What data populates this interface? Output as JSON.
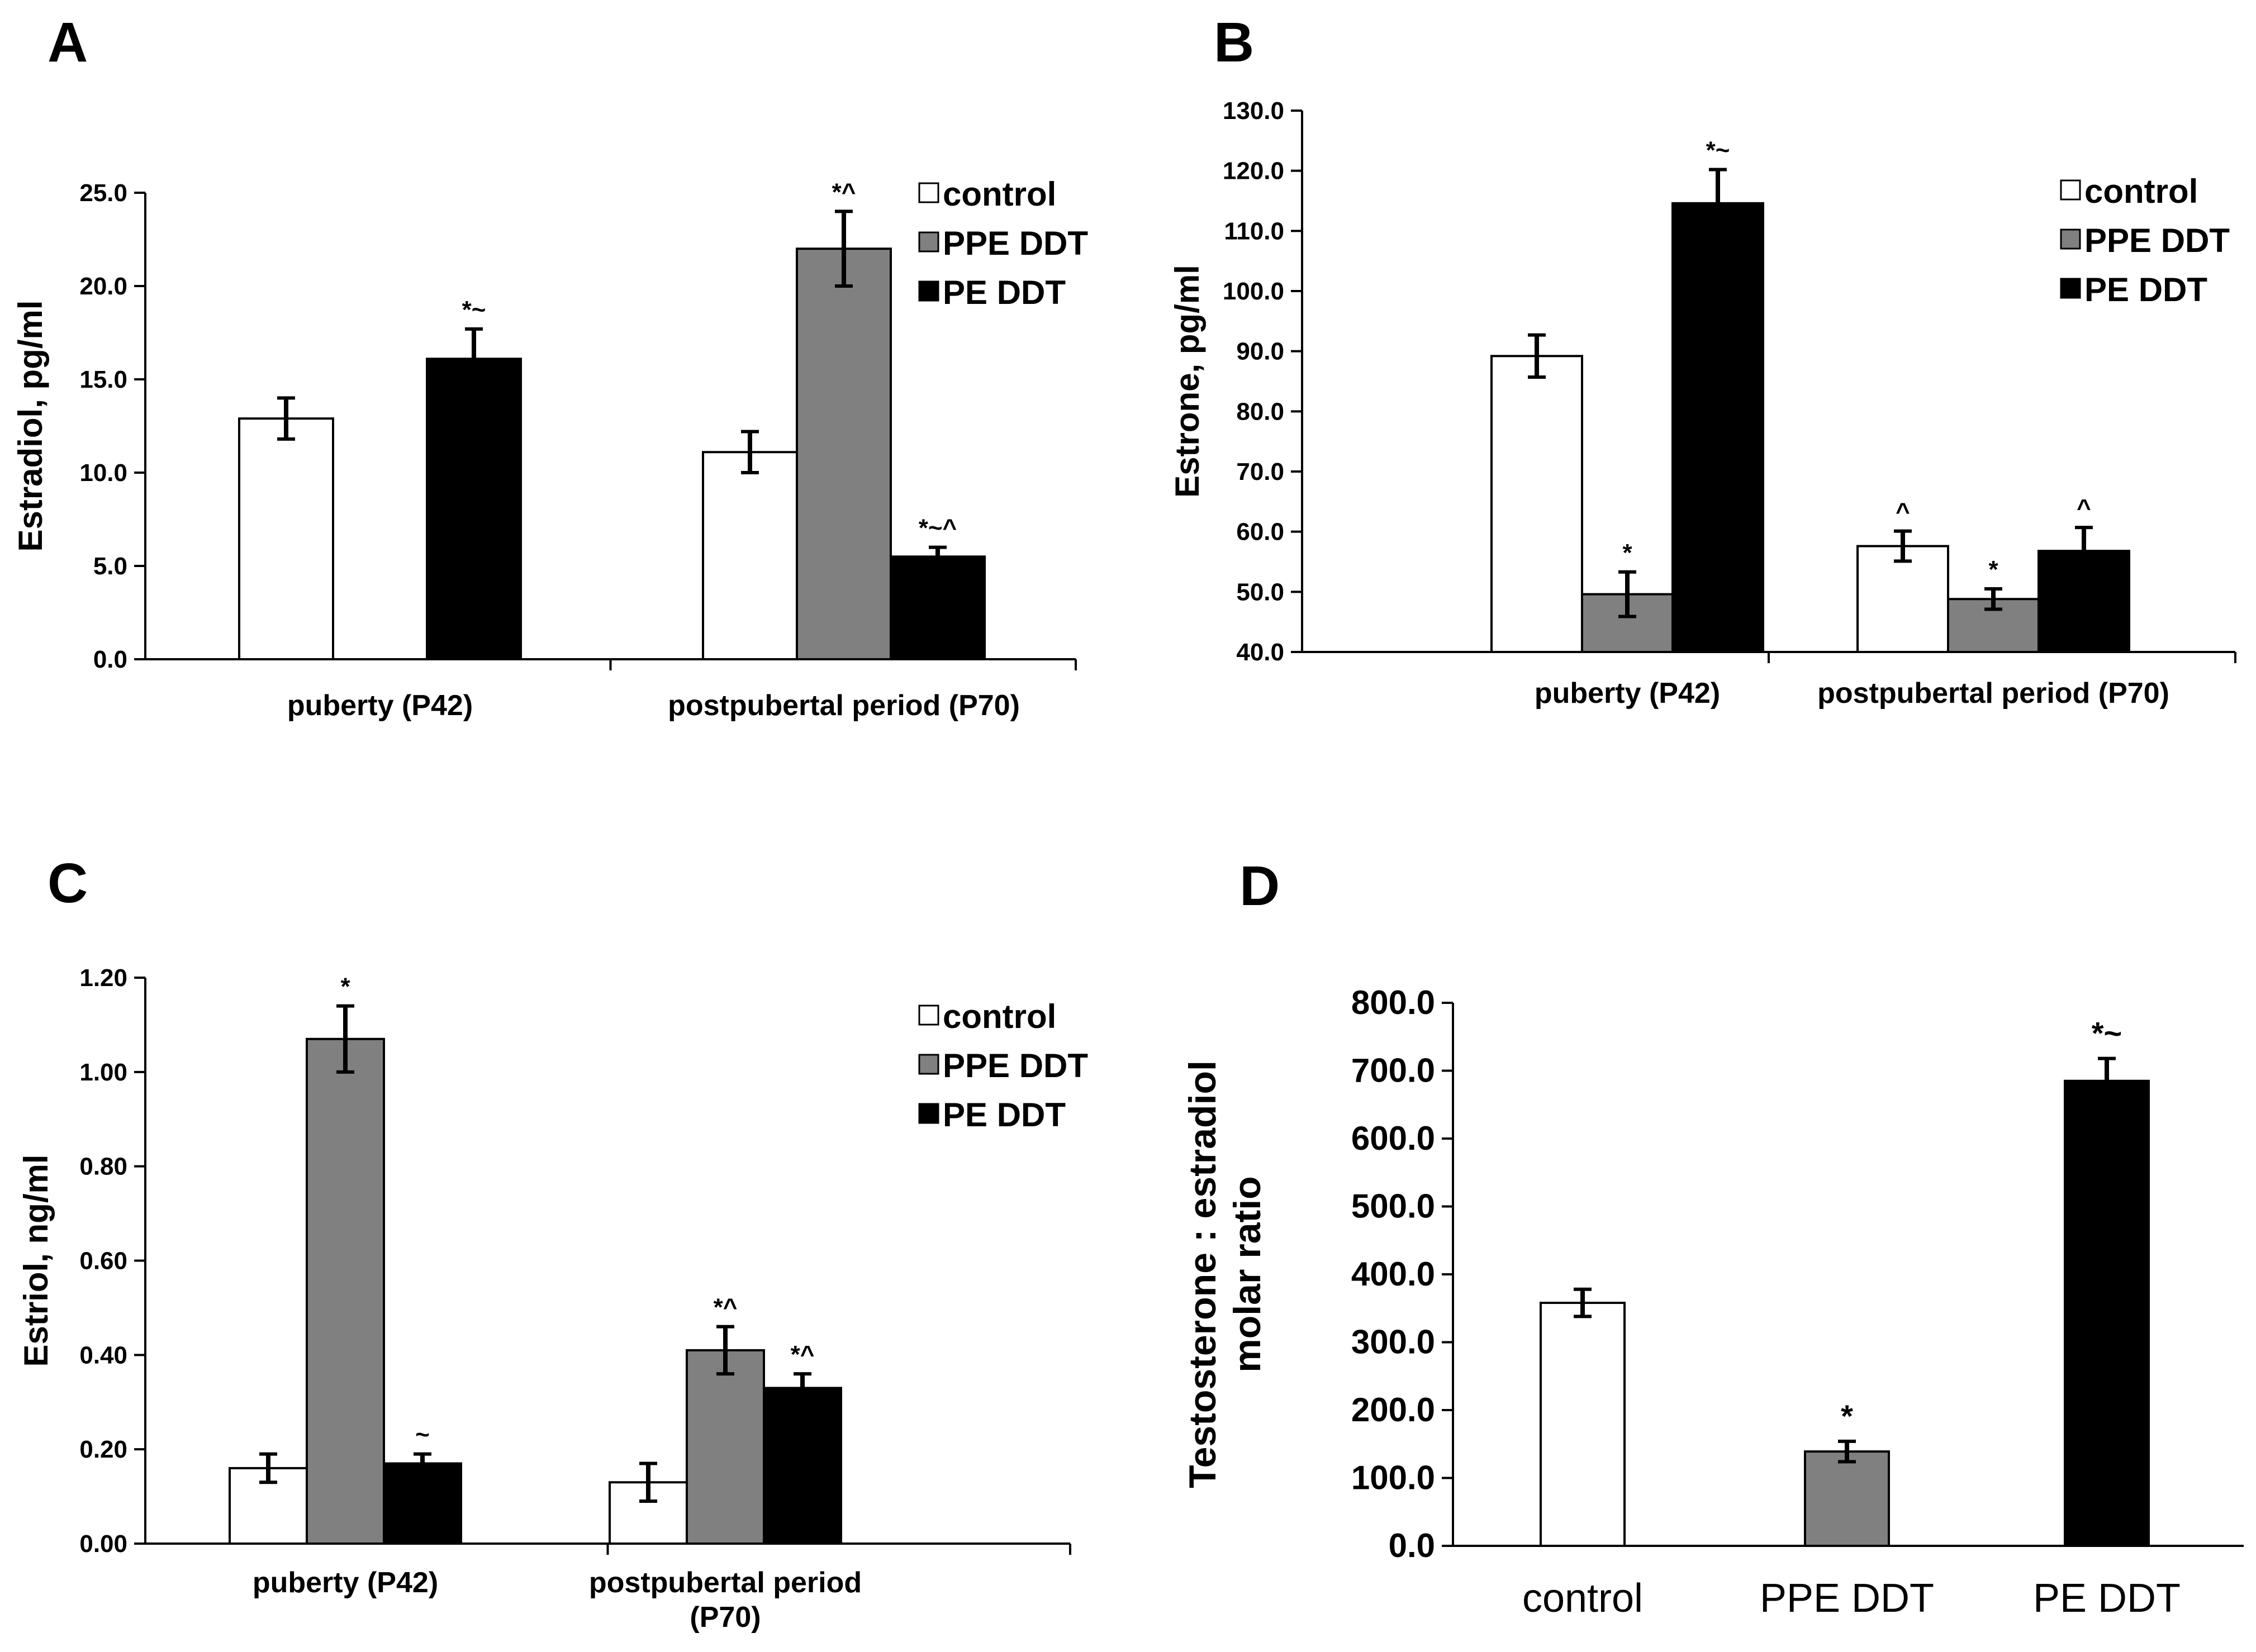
{
  "colors": {
    "control": "#ffffff",
    "PPE DDT": "#808080",
    "PE DDT": "#000000",
    "axis": "#000000"
  },
  "chart_data": [
    {
      "panel": "A",
      "type": "bar",
      "ylabel": "Estradiol,  pg/ml",
      "ylim": [
        0,
        25
      ],
      "yticks": [
        "0.0",
        "5.0",
        "10.0",
        "15.0",
        "20.0",
        "25.0"
      ],
      "categories": [
        "puberty (P42)",
        "postpubertal period (P70)"
      ],
      "legend": [
        "control",
        "PPE DDT",
        "PE DDT"
      ],
      "series": [
        {
          "name": "control",
          "values": [
            12.9,
            11.1
          ],
          "errors": [
            1.1,
            1.1
          ],
          "annotations": [
            "",
            ""
          ]
        },
        {
          "name": "PPE DDT",
          "values": [
            null,
            22.0
          ],
          "errors": [
            null,
            2.0
          ],
          "annotations": [
            "",
            "*^"
          ]
        },
        {
          "name": "PE DDT",
          "values": [
            16.1,
            5.5
          ],
          "errors": [
            1.6,
            0.5
          ],
          "annotations": [
            "*~",
            "*~^"
          ]
        }
      ]
    },
    {
      "panel": "B",
      "type": "bar",
      "ylabel": "Estrone,  pg/ml",
      "ylim": [
        40,
        130
      ],
      "yticks": [
        "40.0",
        "50.0",
        "60.0",
        "70.0",
        "80.0",
        "90.0",
        "100.0",
        "110.0",
        "120.0",
        "130.0"
      ],
      "categories": [
        "puberty  (P42)",
        "postpubertal period (P70)"
      ],
      "legend": [
        "control",
        "PPE DDT",
        "PE DDT"
      ],
      "series": [
        {
          "name": "control",
          "values": [
            89.2,
            57.6
          ],
          "errors": [
            3.5,
            2.5
          ],
          "annotations": [
            "",
            "^"
          ]
        },
        {
          "name": "PPE DDT",
          "values": [
            49.6,
            48.8
          ],
          "errors": [
            3.7,
            1.7
          ],
          "annotations": [
            "*",
            "*"
          ]
        },
        {
          "name": "PE DDT",
          "values": [
            114.6,
            56.8
          ],
          "errors": [
            5.6,
            3.9
          ],
          "annotations": [
            "*~",
            "^"
          ]
        }
      ]
    },
    {
      "panel": "C",
      "type": "bar",
      "ylabel": "Estriol, ng/ml",
      "ylim": [
        0,
        1.2
      ],
      "yticks": [
        "0.00",
        "0.20",
        "0.40",
        "0.60",
        "0.80",
        "1.00",
        "1.20"
      ],
      "categories": [
        [
          "puberty (P42)"
        ],
        [
          "postpubertal period",
          "(P70)"
        ]
      ],
      "legend": [
        "control",
        "PPE DDT",
        "PE DDT"
      ],
      "series": [
        {
          "name": "control",
          "values": [
            0.16,
            0.13
          ],
          "errors": [
            0.03,
            0.04
          ],
          "annotations": [
            "",
            ""
          ]
        },
        {
          "name": "PPE DDT",
          "values": [
            1.07,
            0.41
          ],
          "errors": [
            0.07,
            0.05
          ],
          "annotations": [
            "*",
            "*^"
          ]
        },
        {
          "name": "PE DDT",
          "values": [
            0.17,
            0.33
          ],
          "errors": [
            0.02,
            0.03
          ],
          "annotations": [
            "~",
            "*^"
          ]
        }
      ]
    },
    {
      "panel": "D",
      "type": "bar",
      "ylabel": [
        "Testosterone : estradiol",
        "molar ratio"
      ],
      "ylim": [
        0,
        800
      ],
      "yticks": [
        "0.0",
        "100.0",
        "200.0",
        "300.0",
        "400.0",
        "500.0",
        "600.0",
        "700.0",
        "800.0"
      ],
      "categories": [
        "control",
        "PPE DDT",
        "PE DDT"
      ],
      "values": [
        358,
        139,
        685
      ],
      "errors": [
        20,
        15,
        33
      ],
      "annotations": [
        "",
        "*",
        "*~"
      ]
    }
  ]
}
